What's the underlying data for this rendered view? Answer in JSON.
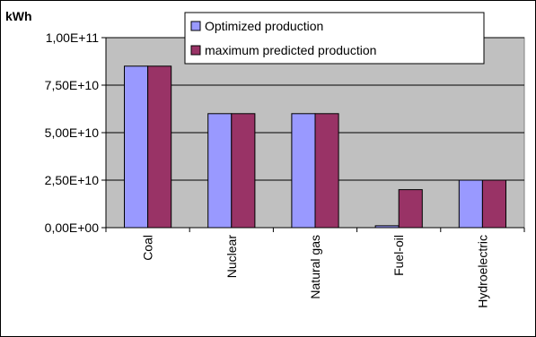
{
  "chart_data": {
    "type": "bar",
    "unit_label": "kWh",
    "categories": [
      "Coal",
      "Nuclear",
      "Natural gas",
      "Fuel-oil",
      "Hydroelectric"
    ],
    "series": [
      {
        "name": "Optimized production",
        "values": [
          85000000000,
          60000000000,
          60000000000,
          1000000000,
          25000000000
        ]
      },
      {
        "name": "maximum predicted production",
        "values": [
          85000000000,
          60000000000,
          60000000000,
          20000000000,
          25000000000
        ]
      }
    ],
    "y_ticks": [
      0,
      25000000000,
      50000000000,
      75000000000,
      100000000000
    ],
    "y_tick_labels": [
      "0,00E+00",
      "2,50E+10",
      "5,00E+10",
      "7,50E+10",
      "1,00E+11"
    ],
    "ylim": [
      0,
      100000000000
    ],
    "grid": true,
    "legend_position": "top-right",
    "colors": {
      "series": [
        "#9999ff",
        "#993366"
      ],
      "plot_background": "#c0c0c0",
      "gridline": "#000000",
      "border": "#000000"
    }
  }
}
